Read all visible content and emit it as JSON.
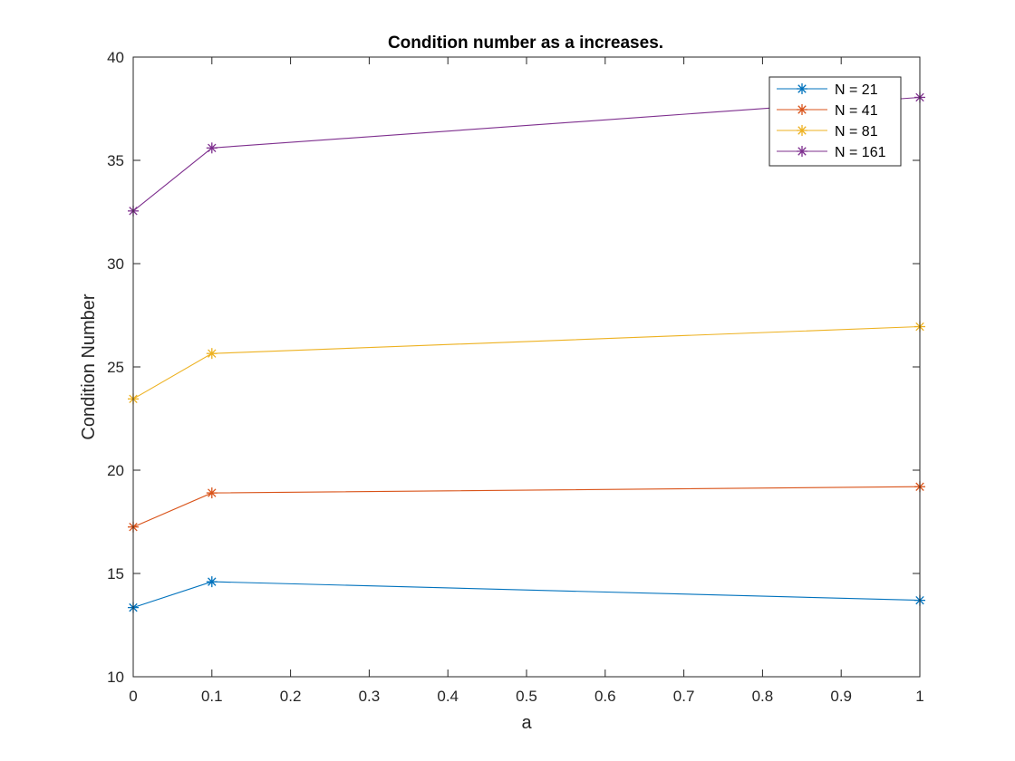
{
  "chart_data": {
    "type": "line",
    "title": "Condition number as a increases.",
    "xlabel": "a",
    "ylabel": "Condition Number",
    "xlim": [
      0,
      1
    ],
    "ylim": [
      10,
      40
    ],
    "xticks": [
      "0",
      "0.1",
      "0.2",
      "0.3",
      "0.4",
      "0.5",
      "0.6",
      "0.7",
      "0.8",
      "0.9",
      "1"
    ],
    "xtick_values": [
      0,
      0.1,
      0.2,
      0.3,
      0.4,
      0.5,
      0.6,
      0.7,
      0.8,
      0.9,
      1
    ],
    "yticks": [
      "10",
      "15",
      "20",
      "25",
      "30",
      "35",
      "40"
    ],
    "ytick_values": [
      10,
      15,
      20,
      25,
      30,
      35,
      40
    ],
    "grid": false,
    "legend_position": "top-right",
    "marker": "asterisk",
    "x": [
      0,
      0.1,
      1
    ],
    "series": [
      {
        "name": "N = 21",
        "color": "#0072BD",
        "values": [
          13.35,
          14.6,
          13.7
        ]
      },
      {
        "name": "N = 41",
        "color": "#D95319",
        "values": [
          17.25,
          18.9,
          19.2
        ]
      },
      {
        "name": "N = 81",
        "color": "#EDB120",
        "values": [
          23.45,
          25.65,
          26.95
        ]
      },
      {
        "name": "N = 161",
        "color": "#7E2F8E",
        "values": [
          32.55,
          35.6,
          38.05
        ]
      }
    ]
  }
}
